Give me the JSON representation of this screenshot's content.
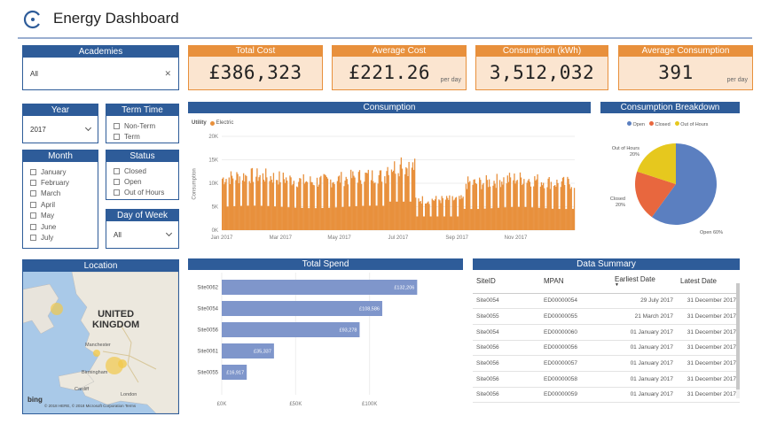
{
  "header": {
    "title": "Energy Dashboard"
  },
  "kpis": [
    {
      "label": "Total Cost",
      "value": "£386,323",
      "suffix": ""
    },
    {
      "label": "Average Cost",
      "value": "£221.26",
      "suffix": "per day"
    },
    {
      "label": "Consumption (kWh)",
      "value": "3,512,032",
      "suffix": ""
    },
    {
      "label": "Average Consumption",
      "value": "391",
      "suffix": "per day"
    }
  ],
  "filters": {
    "academies": {
      "label": "Academies",
      "value": "All"
    },
    "year": {
      "label": "Year",
      "value": "2017"
    },
    "term_time": {
      "label": "Term Time",
      "options": [
        "Non-Term",
        "Term"
      ]
    },
    "month": {
      "label": "Month",
      "options": [
        "January",
        "February",
        "March",
        "April",
        "May",
        "June",
        "July"
      ]
    },
    "status": {
      "label": "Status",
      "options": [
        "Closed",
        "Open",
        "Out of Hours"
      ]
    },
    "day_of_week": {
      "label": "Day of Week",
      "value": "All"
    }
  },
  "consumption_chart": {
    "title": "Consumption",
    "legend_label": "Utility",
    "legend_item": "Electric",
    "ylabel": "Consumption",
    "yticks": [
      "20K",
      "15K",
      "10K",
      "5K",
      "0K"
    ],
    "xticks": [
      "Jan 2017",
      "Mar 2017",
      "May 2017",
      "Jul 2017",
      "Sep 2017",
      "Nov 2017"
    ]
  },
  "breakdown_chart": {
    "title": "Consumption Breakdown",
    "legend": [
      "Open",
      "Closed",
      "Out of Hours"
    ],
    "label_ooh": "Out of Hours",
    "label_ooh_pct": "20%",
    "label_closed": "Closed",
    "label_closed_pct": "20%",
    "label_open": "Open 60%"
  },
  "location": {
    "title": "Location",
    "country": "UNITED KINGDOM",
    "country_line1": "UNITED",
    "country_line2": "KINGDOM",
    "city_london": "London",
    "city_birmingham": "Birmingham",
    "city_manchester": "Manchester",
    "city_cardiff": "Cardiff",
    "brand": "bing",
    "attribution": "© 2018 HERE, © 2018 Microsoft Corporation Terms"
  },
  "total_spend": {
    "title": "Total Spend",
    "rows": [
      {
        "site": "Site0062",
        "label": "£132,206"
      },
      {
        "site": "Site0054",
        "label": "£108,586"
      },
      {
        "site": "Site0056",
        "label": "£93,278"
      },
      {
        "site": "Site0061",
        "label": "£35,337"
      },
      {
        "site": "Site0055",
        "label": "£16,917"
      }
    ],
    "xticks": [
      "£0K",
      "£50K",
      "£100K"
    ]
  },
  "data_summary": {
    "title": "Data Summary",
    "columns": [
      "SiteID",
      "MPAN",
      "Earliest Date",
      "Latest Date"
    ],
    "rows": [
      [
        "Site0054",
        "ED00000054",
        "29 July 2017",
        "31 December 2017"
      ],
      [
        "Site0055",
        "ED00000055",
        "21 March 2017",
        "31 December 2017"
      ],
      [
        "Site0054",
        "ED00000060",
        "01 January 2017",
        "31 December 2017"
      ],
      [
        "Site0056",
        "ED00000056",
        "01 January 2017",
        "31 December 2017"
      ],
      [
        "Site0056",
        "ED00000057",
        "01 January 2017",
        "31 December 2017"
      ],
      [
        "Site0056",
        "ED00000058",
        "01 January 2017",
        "31 December 2017"
      ],
      [
        "Site0056",
        "ED00000059",
        "01 January 2017",
        "31 December 2017"
      ]
    ]
  },
  "chart_data": [
    {
      "type": "bar",
      "title": "Total Spend",
      "categories": [
        "Site0062",
        "Site0054",
        "Site0056",
        "Site0061",
        "Site0055"
      ],
      "values": [
        132206,
        108586,
        93278,
        35337,
        16917
      ],
      "xlim": [
        0,
        150000
      ]
    },
    {
      "type": "pie",
      "title": "Consumption Breakdown",
      "categories": [
        "Open",
        "Closed",
        "Out of Hours"
      ],
      "values": [
        60,
        20,
        20
      ]
    },
    {
      "type": "bar",
      "title": "Consumption",
      "xlabel": "",
      "ylabel": "Consumption",
      "ylim": [
        0,
        20000
      ],
      "x_range": [
        "Jan 2017",
        "Dec 2017"
      ]
    }
  ],
  "colors": {
    "accent": "#2e5c99",
    "kpi": "#e8903c",
    "kpi_bg": "#fbe5d0",
    "bar": "#7f96cb",
    "consumption": "#e8903c",
    "open": "#5b7fc0",
    "closed": "#e8673e",
    "ooh": "#e6c81e"
  }
}
